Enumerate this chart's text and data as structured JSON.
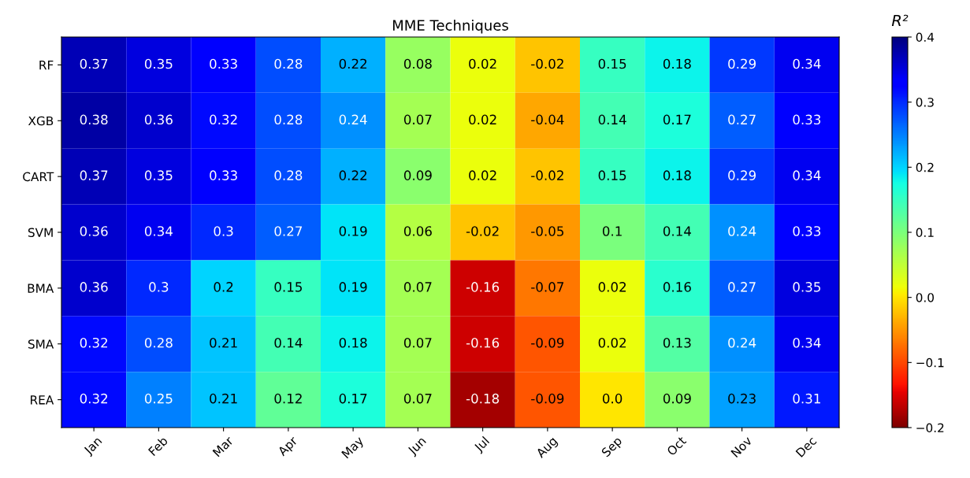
{
  "chart_data": {
    "type": "heatmap",
    "title": "MME Techniques",
    "clabel": "R²",
    "categories": [
      "Jan",
      "Feb",
      "Mar",
      "Apr",
      "May",
      "Jun",
      "Jul",
      "Aug",
      "Sep",
      "Oct",
      "Nov",
      "Dec"
    ],
    "y_categories": [
      "RF",
      "XGB",
      "CART",
      "SVM",
      "BMA",
      "SMA",
      "REA"
    ],
    "cells": [
      [
        0.37,
        0.35,
        0.33,
        0.28,
        0.22,
        0.08,
        0.02,
        -0.02,
        0.15,
        0.18,
        0.29,
        0.34
      ],
      [
        0.38,
        0.36,
        0.32,
        0.28,
        0.24,
        0.07,
        0.02,
        -0.04,
        0.14,
        0.17,
        0.27,
        0.33
      ],
      [
        0.37,
        0.35,
        0.33,
        0.28,
        0.22,
        0.09,
        0.02,
        -0.02,
        0.15,
        0.18,
        0.29,
        0.34
      ],
      [
        0.36,
        0.34,
        0.3,
        0.27,
        0.19,
        0.06,
        -0.02,
        -0.05,
        0.1,
        0.14,
        0.24,
        0.33
      ],
      [
        0.36,
        0.3,
        0.2,
        0.15,
        0.19,
        0.07,
        -0.16,
        -0.07,
        0.02,
        0.16,
        0.27,
        0.35
      ],
      [
        0.32,
        0.28,
        0.21,
        0.14,
        0.18,
        0.07,
        -0.16,
        -0.09,
        0.02,
        0.13,
        0.24,
        0.34
      ],
      [
        0.32,
        0.25,
        0.21,
        0.12,
        0.17,
        0.07,
        -0.18,
        -0.09,
        0.0,
        0.09,
        0.23,
        0.31
      ]
    ],
    "cell_labels": [
      [
        "0.37",
        "0.35",
        "0.33",
        "0.28",
        "0.22",
        "0.08",
        "0.02",
        "-0.02",
        "0.15",
        "0.18",
        "0.29",
        "0.34"
      ],
      [
        "0.38",
        "0.36",
        "0.32",
        "0.28",
        "0.24",
        "0.07",
        "0.02",
        "-0.04",
        "0.14",
        "0.17",
        "0.27",
        "0.33"
      ],
      [
        "0.37",
        "0.35",
        "0.33",
        "0.28",
        "0.22",
        "0.09",
        "0.02",
        "-0.02",
        "0.15",
        "0.18",
        "0.29",
        "0.34"
      ],
      [
        "0.36",
        "0.34",
        "0.3",
        "0.27",
        "0.19",
        "0.06",
        "-0.02",
        "-0.05",
        "0.1",
        "0.14",
        "0.24",
        "0.33"
      ],
      [
        "0.36",
        "0.3",
        "0.2",
        "0.15",
        "0.19",
        "0.07",
        "-0.16",
        "-0.07",
        "0.02",
        "0.16",
        "0.27",
        "0.35"
      ],
      [
        "0.32",
        "0.28",
        "0.21",
        "0.14",
        "0.18",
        "0.07",
        "-0.16",
        "-0.09",
        "0.02",
        "0.13",
        "0.24",
        "0.34"
      ],
      [
        "0.32",
        "0.25",
        "0.21",
        "0.12",
        "0.17",
        "0.07",
        "-0.18",
        "-0.09",
        "0.0",
        "0.09",
        "0.23",
        "0.31"
      ]
    ],
    "clim": [
      -0.2,
      0.4
    ],
    "cticks": [
      {
        "value": -0.2,
        "label": "−0.2"
      },
      {
        "value": -0.1,
        "label": "−0.1"
      },
      {
        "value": 0.0,
        "label": "0.0"
      },
      {
        "value": 0.1,
        "label": "0.1"
      },
      {
        "value": 0.2,
        "label": "0.2"
      },
      {
        "value": 0.3,
        "label": "0.3"
      },
      {
        "value": 0.4,
        "label": "0.4"
      }
    ],
    "data_labels": true
  }
}
